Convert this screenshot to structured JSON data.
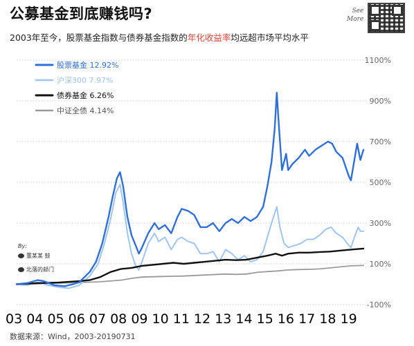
{
  "title": "公募基金到底赚钱吗?",
  "subtitle": {
    "prefix": "2003年至今，股票基金指数与债券基金指数的",
    "highlight": "年化收益率",
    "suffix": "均远超市场平均水平"
  },
  "see_more": [
    "See",
    "More"
  ],
  "byline": {
    "label": "By:",
    "weibo": "董某某 鼓",
    "wechat": "北落的邮门"
  },
  "source": "数据来源：Wind，2003-20190731",
  "chart_data": {
    "type": "line",
    "title": "公募基金到底赚钱吗?",
    "x_tick_labels": [
      "03",
      "04",
      "05",
      "06",
      "07",
      "08",
      "09",
      "10",
      "11",
      "12",
      "13",
      "14",
      "15",
      "16",
      "17",
      "18",
      "19"
    ],
    "xlim": [
      2003.0,
      2019.6
    ],
    "y_tick_labels": [
      "1100%",
      "900%",
      "700%",
      "500%",
      "300%",
      "100%",
      "-100%"
    ],
    "y_ticks": [
      1100,
      900,
      700,
      500,
      300,
      100,
      -100
    ],
    "ylim": [
      -100,
      1100
    ],
    "grid": "horizontal dotted",
    "legend_position": "top-left",
    "series": [
      {
        "name": "股票基金 12.92%",
        "color": "#2f6fd6",
        "width": 2.4,
        "points": [
          [
            2003.0,
            0
          ],
          [
            2003.5,
            5
          ],
          [
            2004.0,
            20
          ],
          [
            2004.3,
            15
          ],
          [
            2004.8,
            -5
          ],
          [
            2005.3,
            -10
          ],
          [
            2005.7,
            0
          ],
          [
            2006.0,
            10
          ],
          [
            2006.5,
            60
          ],
          [
            2006.8,
            110
          ],
          [
            2007.1,
            200
          ],
          [
            2007.4,
            330
          ],
          [
            2007.6,
            430
          ],
          [
            2007.8,
            520
          ],
          [
            2007.95,
            550
          ],
          [
            2008.1,
            480
          ],
          [
            2008.3,
            330
          ],
          [
            2008.5,
            240
          ],
          [
            2008.7,
            190
          ],
          [
            2008.85,
            150
          ],
          [
            2009.0,
            180
          ],
          [
            2009.3,
            250
          ],
          [
            2009.6,
            300
          ],
          [
            2009.8,
            270
          ],
          [
            2010.1,
            290
          ],
          [
            2010.4,
            250
          ],
          [
            2010.7,
            330
          ],
          [
            2010.9,
            370
          ],
          [
            2011.2,
            360
          ],
          [
            2011.5,
            340
          ],
          [
            2011.8,
            280
          ],
          [
            2012.1,
            280
          ],
          [
            2012.4,
            300
          ],
          [
            2012.7,
            260
          ],
          [
            2013.0,
            300
          ],
          [
            2013.3,
            320
          ],
          [
            2013.6,
            300
          ],
          [
            2013.9,
            330
          ],
          [
            2014.2,
            310
          ],
          [
            2014.5,
            330
          ],
          [
            2014.8,
            380
          ],
          [
            2015.0,
            480
          ],
          [
            2015.2,
            600
          ],
          [
            2015.35,
            760
          ],
          [
            2015.45,
            940
          ],
          [
            2015.55,
            780
          ],
          [
            2015.7,
            560
          ],
          [
            2015.9,
            640
          ],
          [
            2016.0,
            560
          ],
          [
            2016.2,
            590
          ],
          [
            2016.5,
            620
          ],
          [
            2016.8,
            660
          ],
          [
            2017.0,
            630
          ],
          [
            2017.3,
            660
          ],
          [
            2017.6,
            680
          ],
          [
            2017.9,
            700
          ],
          [
            2018.1,
            690
          ],
          [
            2018.3,
            650
          ],
          [
            2018.6,
            620
          ],
          [
            2018.9,
            530
          ],
          [
            2019.0,
            510
          ],
          [
            2019.15,
            600
          ],
          [
            2019.3,
            690
          ],
          [
            2019.45,
            610
          ],
          [
            2019.6,
            660
          ]
        ]
      },
      {
        "name": "沪深300  7.97%",
        "color": "#9fc4ef",
        "width": 2.0,
        "points": [
          [
            2003.0,
            0
          ],
          [
            2003.5,
            -5
          ],
          [
            2004.0,
            10
          ],
          [
            2004.5,
            -5
          ],
          [
            2005.0,
            -15
          ],
          [
            2005.5,
            -20
          ],
          [
            2006.0,
            -5
          ],
          [
            2006.5,
            40
          ],
          [
            2006.9,
            100
          ],
          [
            2007.2,
            200
          ],
          [
            2007.5,
            320
          ],
          [
            2007.75,
            450
          ],
          [
            2007.95,
            490
          ],
          [
            2008.1,
            400
          ],
          [
            2008.3,
            250
          ],
          [
            2008.5,
            150
          ],
          [
            2008.7,
            90
          ],
          [
            2008.85,
            70
          ],
          [
            2009.0,
            110
          ],
          [
            2009.3,
            200
          ],
          [
            2009.6,
            250
          ],
          [
            2009.8,
            210
          ],
          [
            2010.1,
            230
          ],
          [
            2010.4,
            170
          ],
          [
            2010.7,
            220
          ],
          [
            2010.9,
            230
          ],
          [
            2011.2,
            210
          ],
          [
            2011.5,
            200
          ],
          [
            2011.8,
            150
          ],
          [
            2012.1,
            150
          ],
          [
            2012.4,
            160
          ],
          [
            2012.7,
            110
          ],
          [
            2013.0,
            170
          ],
          [
            2013.3,
            150
          ],
          [
            2013.6,
            120
          ],
          [
            2013.9,
            140
          ],
          [
            2014.2,
            110
          ],
          [
            2014.5,
            120
          ],
          [
            2014.8,
            160
          ],
          [
            2015.0,
            230
          ],
          [
            2015.2,
            300
          ],
          [
            2015.45,
            380
          ],
          [
            2015.6,
            280
          ],
          [
            2015.8,
            200
          ],
          [
            2016.0,
            180
          ],
          [
            2016.3,
            190
          ],
          [
            2016.6,
            200
          ],
          [
            2016.9,
            220
          ],
          [
            2017.2,
            220
          ],
          [
            2017.5,
            240
          ],
          [
            2017.8,
            270
          ],
          [
            2018.05,
            280
          ],
          [
            2018.3,
            250
          ],
          [
            2018.6,
            230
          ],
          [
            2018.9,
            190
          ],
          [
            2019.0,
            180
          ],
          [
            2019.2,
            240
          ],
          [
            2019.35,
            280
          ],
          [
            2019.45,
            260
          ],
          [
            2019.6,
            260
          ]
        ]
      },
      {
        "name": "债券基金  6.26%",
        "color": "#111111",
        "width": 2.4,
        "points": [
          [
            2003.0,
            0
          ],
          [
            2004.0,
            5
          ],
          [
            2005.0,
            8
          ],
          [
            2006.0,
            15
          ],
          [
            2006.5,
            20
          ],
          [
            2007.0,
            35
          ],
          [
            2007.5,
            60
          ],
          [
            2008.0,
            75
          ],
          [
            2008.5,
            80
          ],
          [
            2009.0,
            90
          ],
          [
            2009.5,
            95
          ],
          [
            2010.0,
            100
          ],
          [
            2010.5,
            105
          ],
          [
            2011.0,
            100
          ],
          [
            2011.5,
            105
          ],
          [
            2012.0,
            110
          ],
          [
            2012.5,
            115
          ],
          [
            2013.0,
            120
          ],
          [
            2013.5,
            118
          ],
          [
            2014.0,
            120
          ],
          [
            2014.5,
            130
          ],
          [
            2015.0,
            140
          ],
          [
            2015.4,
            150
          ],
          [
            2015.7,
            140
          ],
          [
            2016.0,
            150
          ],
          [
            2016.5,
            155
          ],
          [
            2017.0,
            155
          ],
          [
            2017.5,
            158
          ],
          [
            2018.0,
            160
          ],
          [
            2018.5,
            165
          ],
          [
            2019.0,
            170
          ],
          [
            2019.6,
            175
          ]
        ]
      },
      {
        "name": "中证全债  4.14%",
        "color": "#9a9a9a",
        "width": 1.8,
        "points": [
          [
            2003.0,
            0
          ],
          [
            2004.0,
            2
          ],
          [
            2005.0,
            5
          ],
          [
            2006.0,
            8
          ],
          [
            2007.0,
            12
          ],
          [
            2008.0,
            20
          ],
          [
            2008.6,
            30
          ],
          [
            2009.0,
            35
          ],
          [
            2010.0,
            38
          ],
          [
            2011.0,
            40
          ],
          [
            2012.0,
            45
          ],
          [
            2013.0,
            50
          ],
          [
            2013.5,
            48
          ],
          [
            2014.0,
            50
          ],
          [
            2014.5,
            58
          ],
          [
            2015.0,
            62
          ],
          [
            2015.5,
            65
          ],
          [
            2016.0,
            70
          ],
          [
            2016.5,
            72
          ],
          [
            2017.0,
            73
          ],
          [
            2017.5,
            75
          ],
          [
            2018.0,
            80
          ],
          [
            2018.5,
            85
          ],
          [
            2019.0,
            90
          ],
          [
            2019.6,
            92
          ]
        ]
      }
    ]
  }
}
